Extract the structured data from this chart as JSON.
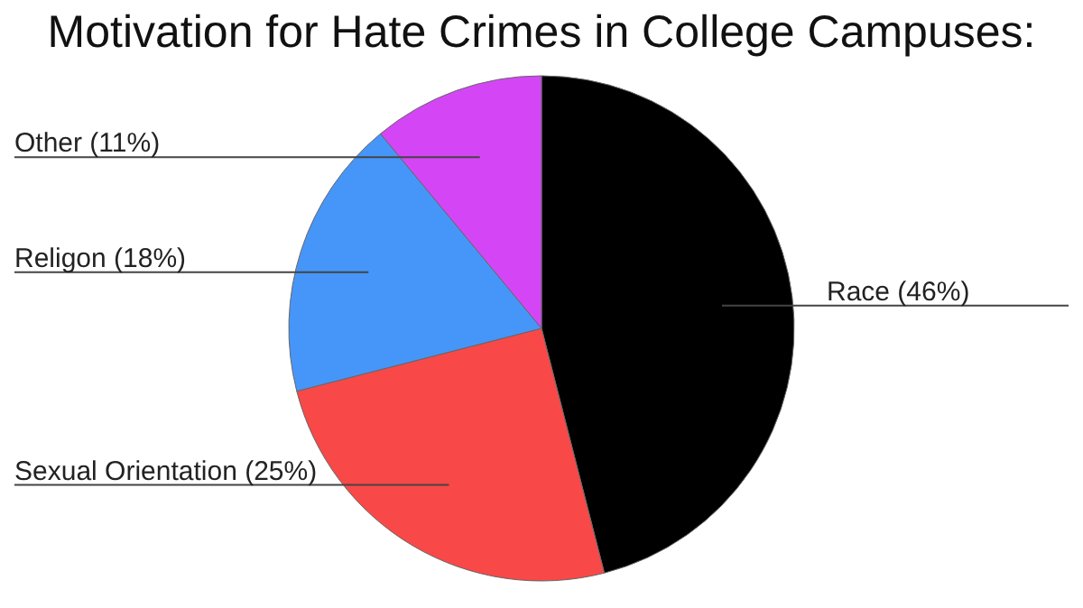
{
  "chart_data": {
    "type": "pie",
    "title": "Motivation for Hate Crimes in College Campuses:",
    "categories": [
      "Race (46%)",
      "Sexual Orientation (25%)",
      "Religon (18%)",
      "Other (11%)"
    ],
    "values": [
      46,
      25,
      18,
      11
    ],
    "colors": [
      "#000000",
      "#f94848",
      "#4696f9",
      "#d446f5"
    ]
  }
}
